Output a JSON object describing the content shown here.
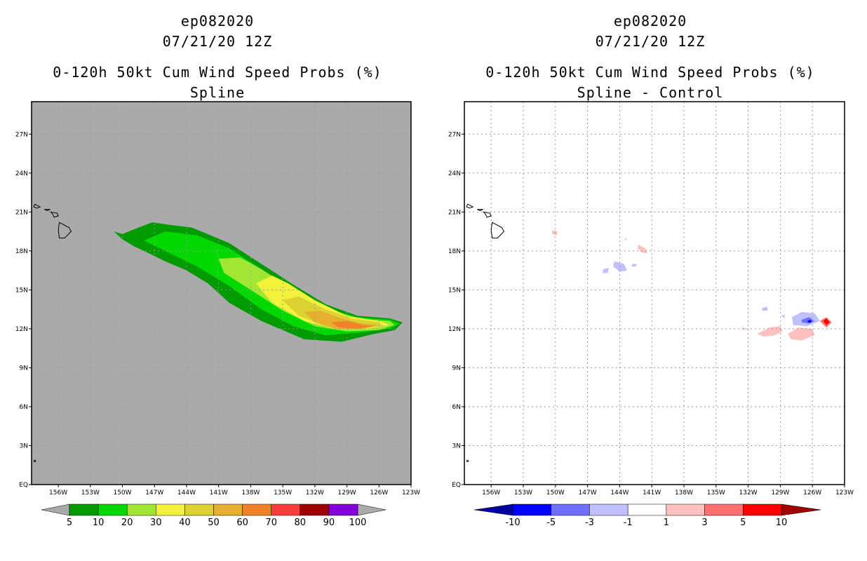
{
  "left_panel": {
    "title_storm": "ep082020",
    "title_time": "07/21/20 12Z",
    "title_product": "0-120h 50kt Cum Wind Speed Probs (%)",
    "title_method": "Spline",
    "colorbar_labels": [
      "5",
      "10",
      "20",
      "30",
      "40",
      "50",
      "60",
      "70",
      "80",
      "90",
      "100"
    ],
    "colorbar_colors": [
      "#009b00",
      "#00d900",
      "#a0e632",
      "#f2f23c",
      "#dcd232",
      "#e6af2d",
      "#f08228",
      "#fa3c3c",
      "#a00000",
      "#8200dc"
    ],
    "background_color": "#aaaaaa"
  },
  "right_panel": {
    "title_storm": "ep082020",
    "title_time": "07/21/20 12Z",
    "title_product": "0-120h 50kt Cum Wind Speed Probs (%)",
    "title_method": "Spline - Control",
    "colorbar_labels": [
      "-10",
      "-5",
      "-3",
      "-1",
      "1",
      "3",
      "5",
      "10"
    ],
    "colorbar_colors": [
      "#0000a0",
      "#0000ff",
      "#7070ff",
      "#c0c0ff",
      "#ffffff",
      "#ffc0c0",
      "#ff7070",
      "#ff0000",
      "#a00000"
    ]
  },
  "axes": {
    "lat_labels": [
      "EQ",
      "3N",
      "6N",
      "9N",
      "12N",
      "15N",
      "18N",
      "21N",
      "24N",
      "27N"
    ],
    "lat_values": [
      0,
      3,
      6,
      9,
      12,
      15,
      18,
      21,
      24,
      27
    ],
    "lon_labels": [
      "156W",
      "153W",
      "150W",
      "147W",
      "144W",
      "141W",
      "138W",
      "135W",
      "132W",
      "129W",
      "126W",
      "123W"
    ],
    "lon_values": [
      -156,
      -153,
      -150,
      -147,
      -144,
      -141,
      -138,
      -135,
      -132,
      -129,
      -126,
      -123
    ],
    "lon_range": [
      -158.5,
      -123
    ],
    "lat_range": [
      0,
      29.5
    ]
  },
  "map_data": {
    "prob_levels": [
      {
        "level": 5,
        "color": "#009b00",
        "polygon": [
          [
            -150.8,
            19.5
          ],
          [
            -150.0,
            19.3
          ],
          [
            -148.5,
            19.8
          ],
          [
            -147.2,
            20.2
          ],
          [
            -145.5,
            20.0
          ],
          [
            -143.5,
            19.8
          ],
          [
            -140.0,
            18.6
          ],
          [
            -137.0,
            17.0
          ],
          [
            -134.0,
            15.4
          ],
          [
            -131.0,
            13.9
          ],
          [
            -128.0,
            13.0
          ],
          [
            -125.0,
            12.8
          ],
          [
            -123.8,
            12.5
          ],
          [
            -124.5,
            11.9
          ],
          [
            -126.5,
            11.6
          ],
          [
            -129.5,
            11.0
          ],
          [
            -133.0,
            11.2
          ],
          [
            -137.0,
            12.6
          ],
          [
            -140.0,
            14.0
          ],
          [
            -142.0,
            15.5
          ],
          [
            -144.0,
            16.5
          ],
          [
            -146.0,
            17.2
          ],
          [
            -147.5,
            17.8
          ],
          [
            -149.0,
            18.4
          ],
          [
            -150.0,
            18.9
          ]
        ]
      },
      {
        "level": 10,
        "color": "#00d900",
        "polygon": [
          [
            -148.0,
            18.8
          ],
          [
            -146.0,
            19.5
          ],
          [
            -143.0,
            19.2
          ],
          [
            -140.0,
            18.2
          ],
          [
            -137.0,
            16.6
          ],
          [
            -134.0,
            15.0
          ],
          [
            -131.0,
            13.6
          ],
          [
            -128.0,
            12.9
          ],
          [
            -125.0,
            12.7
          ],
          [
            -124.0,
            12.4
          ],
          [
            -125.0,
            12.0
          ],
          [
            -128.0,
            11.7
          ],
          [
            -131.0,
            11.5
          ],
          [
            -134.0,
            12.2
          ],
          [
            -137.0,
            13.5
          ],
          [
            -140.0,
            15.3
          ],
          [
            -143.0,
            16.8
          ],
          [
            -145.5,
            17.8
          ]
        ]
      },
      {
        "level": 20,
        "color": "#a0e632",
        "polygon": [
          [
            -141.0,
            17.4
          ],
          [
            -139.0,
            17.5
          ],
          [
            -137.0,
            16.6
          ],
          [
            -134.0,
            15.0
          ],
          [
            -131.0,
            13.6
          ],
          [
            -128.0,
            12.8
          ],
          [
            -125.0,
            12.6
          ],
          [
            -124.5,
            12.3
          ],
          [
            -126.0,
            11.9
          ],
          [
            -129.0,
            11.8
          ],
          [
            -132.0,
            12.2
          ],
          [
            -135.0,
            13.4
          ],
          [
            -138.0,
            15.0
          ],
          [
            -140.5,
            16.3
          ]
        ]
      },
      {
        "level": 30,
        "color": "#f2f23c",
        "polygon": [
          [
            -137.5,
            15.5
          ],
          [
            -136.0,
            16.1
          ],
          [
            -134.5,
            15.5
          ],
          [
            -132.0,
            14.2
          ],
          [
            -129.0,
            13.0
          ],
          [
            -126.0,
            12.6
          ],
          [
            -125.0,
            12.3
          ],
          [
            -127.0,
            12.0
          ],
          [
            -130.0,
            12.0
          ],
          [
            -133.0,
            12.6
          ],
          [
            -136.0,
            14.0
          ]
        ]
      },
      {
        "level": 40,
        "color": "#dcd232",
        "polygon": [
          [
            -135.0,
            14.2
          ],
          [
            -133.5,
            14.5
          ],
          [
            -131.0,
            13.5
          ],
          [
            -128.5,
            12.8
          ],
          [
            -126.0,
            12.5
          ],
          [
            -125.5,
            12.2
          ],
          [
            -128.0,
            12.0
          ],
          [
            -131.0,
            12.2
          ],
          [
            -133.5,
            13.0
          ]
        ]
      },
      {
        "level": 50,
        "color": "#e6af2d",
        "polygon": [
          [
            -133.0,
            13.3
          ],
          [
            -131.5,
            13.4
          ],
          [
            -129.5,
            12.8
          ],
          [
            -127.5,
            12.4
          ],
          [
            -126.0,
            12.3
          ],
          [
            -127.5,
            12.0
          ],
          [
            -130.0,
            12.0
          ],
          [
            -132.0,
            12.5
          ]
        ]
      },
      {
        "level": 60,
        "color": "#f08228",
        "polygon": [
          [
            -130.5,
            12.5
          ],
          [
            -129.0,
            12.6
          ],
          [
            -127.5,
            12.3
          ],
          [
            -126.5,
            12.2
          ],
          [
            -128.0,
            12.0
          ],
          [
            -129.8,
            12.1
          ]
        ]
      }
    ],
    "diff_patches": [
      {
        "value": 1,
        "color": "#ffc0c0",
        "polygon": [
          [
            -150.3,
            19.6
          ],
          [
            -149.8,
            19.5
          ],
          [
            -149.9,
            19.2
          ],
          [
            -150.3,
            19.3
          ]
        ]
      },
      {
        "value": 1,
        "color": "#ffc0c0",
        "polygon": [
          [
            -142.3,
            18.5
          ],
          [
            -141.6,
            18.2
          ],
          [
            -141.4,
            17.8
          ],
          [
            -142.0,
            17.9
          ],
          [
            -142.3,
            18.2
          ]
        ]
      },
      {
        "value": 1,
        "color": "#ffc0c0",
        "polygon": [
          [
            -143.5,
            19.0
          ],
          [
            -143.3,
            18.9
          ],
          [
            -143.5,
            18.8
          ]
        ]
      },
      {
        "value": 1,
        "color": "#ffc0c0",
        "polygon": [
          [
            -131.2,
            11.6
          ],
          [
            -130.0,
            12.1
          ],
          [
            -129.0,
            12.2
          ],
          [
            -128.8,
            11.8
          ],
          [
            -129.5,
            11.5
          ],
          [
            -130.5,
            11.4
          ]
        ]
      },
      {
        "value": 1,
        "color": "#ffc0c0",
        "polygon": [
          [
            -128.3,
            11.6
          ],
          [
            -127.3,
            12.1
          ],
          [
            -126.0,
            12.0
          ],
          [
            -125.8,
            11.5
          ],
          [
            -127.0,
            11.1
          ],
          [
            -128.0,
            11.2
          ]
        ]
      },
      {
        "value": 1,
        "color": "#ffc0c0",
        "polygon": [
          [
            -132.5,
            12.1
          ],
          [
            -132.1,
            12.0
          ],
          [
            -132.5,
            11.9
          ]
        ]
      },
      {
        "value": 3,
        "color": "#ff7070",
        "polygon": [
          [
            -125.3,
            12.6
          ],
          [
            -124.7,
            12.9
          ],
          [
            -124.2,
            12.5
          ],
          [
            -124.7,
            12.1
          ]
        ]
      },
      {
        "value": 5,
        "color": "#ff0000",
        "polygon": [
          [
            -125.0,
            12.6
          ],
          [
            -124.7,
            12.8
          ],
          [
            -124.4,
            12.5
          ],
          [
            -124.7,
            12.3
          ]
        ]
      },
      {
        "value": -1,
        "color": "#c0c0ff",
        "polygon": [
          [
            -144.5,
            17.2
          ],
          [
            -143.6,
            17.0
          ],
          [
            -143.3,
            16.5
          ],
          [
            -144.0,
            16.4
          ],
          [
            -144.6,
            16.8
          ]
        ]
      },
      {
        "value": -1,
        "color": "#c0c0ff",
        "polygon": [
          [
            -145.5,
            16.6
          ],
          [
            -145.0,
            16.7
          ],
          [
            -145.1,
            16.3
          ],
          [
            -145.6,
            16.3
          ]
        ]
      },
      {
        "value": -1,
        "color": "#c0c0ff",
        "polygon": [
          [
            -142.8,
            17.0
          ],
          [
            -142.4,
            17.0
          ],
          [
            -142.5,
            16.8
          ],
          [
            -142.9,
            16.8
          ]
        ]
      },
      {
        "value": -1,
        "color": "#c0c0ff",
        "polygon": [
          [
            -127.9,
            12.9
          ],
          [
            -127.0,
            13.3
          ],
          [
            -125.8,
            13.2
          ],
          [
            -125.3,
            12.6
          ],
          [
            -126.5,
            12.2
          ],
          [
            -127.8,
            12.3
          ]
        ]
      },
      {
        "value": -1,
        "color": "#c0c0ff",
        "polygon": [
          [
            -130.7,
            13.6
          ],
          [
            -130.2,
            13.7
          ],
          [
            -130.2,
            13.4
          ],
          [
            -130.7,
            13.4
          ]
        ]
      },
      {
        "value": -1,
        "color": "#c0c0ff",
        "polygon": [
          [
            -128.9,
            13.0
          ],
          [
            -128.6,
            13.1
          ],
          [
            -128.6,
            12.8
          ]
        ]
      },
      {
        "value": -3,
        "color": "#7070ff",
        "polygon": [
          [
            -127.0,
            12.7
          ],
          [
            -126.3,
            12.9
          ],
          [
            -125.8,
            12.6
          ],
          [
            -126.4,
            12.4
          ],
          [
            -127.0,
            12.5
          ]
        ]
      },
      {
        "value": -5,
        "color": "#0000ff",
        "polygon": [
          [
            -126.5,
            12.6
          ],
          [
            -126.2,
            12.7
          ],
          [
            -126.0,
            12.55
          ],
          [
            -126.3,
            12.45
          ]
        ]
      }
    ]
  }
}
